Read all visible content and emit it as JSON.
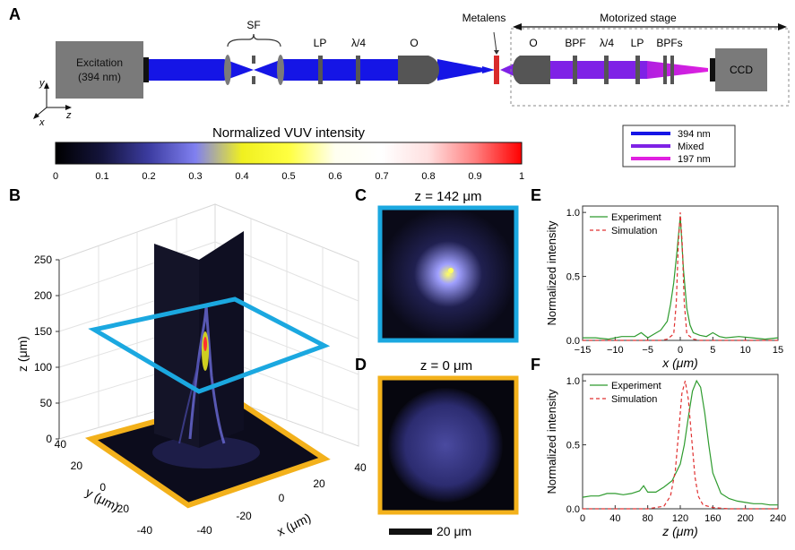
{
  "panels": {
    "A": "A",
    "B": "B",
    "C": "C",
    "D": "D",
    "E": "E",
    "F": "F"
  },
  "setup": {
    "excitation": "Excitation",
    "excitation_wavelength": "(394 nm)",
    "sf": "SF",
    "lp": "LP",
    "qwp": "λ/4",
    "objective": "O",
    "metalens": "Metalens",
    "motorized_stage": "Motorized stage",
    "objective2": "O",
    "bpf": "BPF",
    "qwp2": "λ/4",
    "lp2": "LP",
    "bpfs": "BPFs",
    "ccd": "CCD",
    "axis_y": "y",
    "axis_z": "z",
    "axis_x": "x",
    "legend": [
      {
        "label": "394 nm",
        "color": "#1515e6"
      },
      {
        "label": "Mixed",
        "color": "#7f22e6"
      },
      {
        "label": "197 nm",
        "color": "#e020e0"
      }
    ]
  },
  "colorbar": {
    "title": "Normalized VUV intensity",
    "ticks": [
      "0",
      "0.1",
      "0.2",
      "0.3",
      "0.4",
      "0.5",
      "0.6",
      "0.7",
      "0.8",
      "0.9",
      "1"
    ]
  },
  "panel_b": {
    "z_ticks": [
      "0",
      "50",
      "100",
      "150",
      "200",
      "250"
    ],
    "z_label": "z (μm)",
    "y_ticks": [
      "40",
      "20",
      "0",
      "-20",
      "-40"
    ],
    "y_label": "y (μm)",
    "x_ticks": [
      "-40",
      "-20",
      "0",
      "20",
      "40"
    ],
    "x_label": "x (μm)"
  },
  "panel_c": {
    "title": "z = 142 μm",
    "frame_color": "#1ba8e0"
  },
  "panel_d": {
    "title": "z = 0 μm",
    "frame_color": "#f3b11b",
    "scalebar": "20 μm"
  },
  "chart_data": [
    {
      "type": "line",
      "title": "",
      "xlabel": "x (μm)",
      "ylabel": "Normalized intensity",
      "xlim": [
        -15,
        15
      ],
      "ylim": [
        0,
        1.05
      ],
      "x_ticks": [
        "-15",
        "-10",
        "-5",
        "0",
        "5",
        "10",
        "15"
      ],
      "y_ticks": [
        "0.0",
        "0.5",
        "1.0"
      ],
      "legend": [
        "Experiment",
        "Simulation"
      ],
      "series": [
        {
          "name": "Experiment",
          "style": "solid",
          "color": "#2e9b2e",
          "x": [
            -15,
            -13,
            -11,
            -9,
            -7,
            -6,
            -5,
            -4,
            -3,
            -2,
            -1.5,
            -1,
            -0.5,
            0,
            0.5,
            1,
            1.5,
            2,
            3,
            4,
            5,
            6,
            7,
            9,
            11,
            13,
            15
          ],
          "y": [
            0.02,
            0.02,
            0.01,
            0.03,
            0.03,
            0.06,
            0.02,
            0.05,
            0.08,
            0.15,
            0.28,
            0.45,
            0.7,
            0.97,
            0.55,
            0.25,
            0.12,
            0.06,
            0.04,
            0.03,
            0.06,
            0.03,
            0.02,
            0.03,
            0.02,
            0.01,
            0.02
          ]
        },
        {
          "name": "Simulation",
          "style": "dashed",
          "color": "#e03030",
          "x": [
            -15,
            -3,
            -2,
            -1,
            -0.6,
            -0.3,
            0,
            0.3,
            0.6,
            1,
            2,
            3,
            15
          ],
          "y": [
            0,
            0,
            0.01,
            0.05,
            0.3,
            0.75,
            1.0,
            0.75,
            0.3,
            0.05,
            0.01,
            0,
            0
          ]
        }
      ]
    },
    {
      "type": "line",
      "title": "",
      "xlabel": "z (μm)",
      "ylabel": "Normalized intensity",
      "xlim": [
        0,
        240
      ],
      "ylim": [
        0,
        1.05
      ],
      "x_ticks": [
        "0",
        "40",
        "80",
        "120",
        "160",
        "200",
        "240"
      ],
      "y_ticks": [
        "0.0",
        "0.5",
        "1.0"
      ],
      "legend": [
        "Experiment",
        "Simulation"
      ],
      "series": [
        {
          "name": "Experiment",
          "style": "solid",
          "color": "#2e9b2e",
          "x": [
            0,
            10,
            20,
            30,
            40,
            50,
            60,
            70,
            75,
            80,
            90,
            100,
            110,
            120,
            125,
            130,
            135,
            140,
            145,
            150,
            155,
            160,
            170,
            180,
            190,
            200,
            210,
            220,
            230,
            240
          ],
          "y": [
            0.09,
            0.1,
            0.1,
            0.12,
            0.12,
            0.11,
            0.12,
            0.14,
            0.18,
            0.13,
            0.13,
            0.17,
            0.22,
            0.35,
            0.5,
            0.72,
            0.92,
            1.0,
            0.95,
            0.75,
            0.5,
            0.28,
            0.12,
            0.08,
            0.06,
            0.05,
            0.04,
            0.04,
            0.03,
            0.03
          ]
        },
        {
          "name": "Simulation",
          "style": "dashed",
          "color": "#e03030",
          "x": [
            0,
            80,
            100,
            108,
            114,
            118,
            122,
            126,
            130,
            134,
            138,
            142,
            148,
            160,
            180,
            240
          ],
          "y": [
            0,
            0,
            0.02,
            0.1,
            0.3,
            0.6,
            0.9,
            1.0,
            0.85,
            0.55,
            0.25,
            0.1,
            0.03,
            0.01,
            0,
            0
          ]
        }
      ]
    }
  ]
}
